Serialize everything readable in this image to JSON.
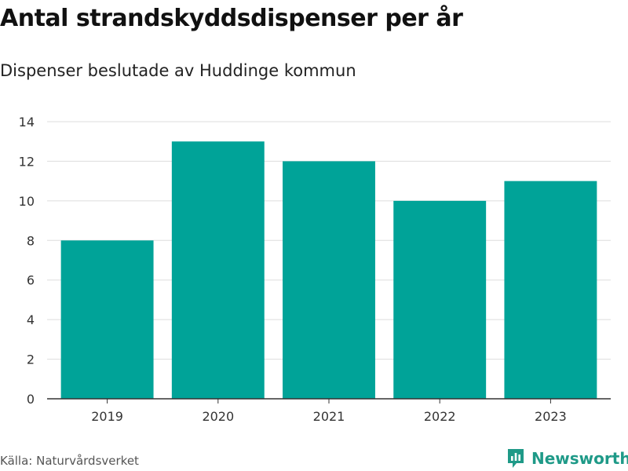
{
  "colors": {
    "bar": "#00a398",
    "grid": "#dddddd",
    "axis": "#333333",
    "brand": "#1f9a88"
  },
  "chart_data": {
    "type": "bar",
    "title": "Antal strandskyddsdispenser per år",
    "subtitle": "Dispenser beslutade av Huddinge kommun",
    "categories": [
      "2019",
      "2020",
      "2021",
      "2022",
      "2023"
    ],
    "values": [
      8,
      13,
      12,
      10,
      11
    ],
    "ylim": [
      0,
      14
    ],
    "yticks": [
      0,
      2,
      4,
      6,
      8,
      10,
      12,
      14
    ],
    "xlabel": "",
    "ylabel": "",
    "grid": true,
    "legend": "none"
  },
  "footer": {
    "source": "Källa: Naturvårdsverket",
    "brand": "Newsworthy",
    "brand_icon": "newsworthy-logo-icon"
  }
}
